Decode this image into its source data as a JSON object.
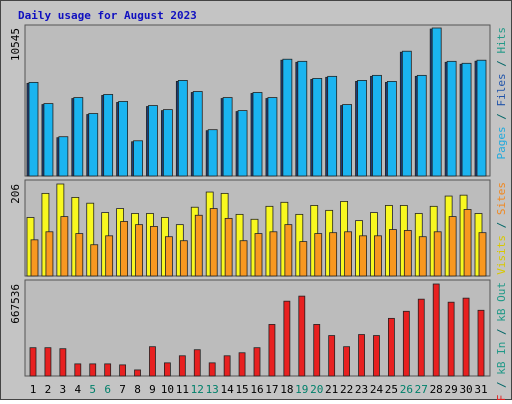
{
  "title": "Daily usage for August 2023",
  "categories": [
    "1",
    "2",
    "3",
    "4",
    "5",
    "6",
    "7",
    "8",
    "9",
    "10",
    "11",
    "12",
    "13",
    "14",
    "15",
    "16",
    "17",
    "18",
    "19",
    "20",
    "21",
    "22",
    "23",
    "24",
    "25",
    "26",
    "27",
    "28",
    "29",
    "30",
    "31"
  ],
  "category_colors": [
    "#000000",
    "#000000",
    "#000000",
    "#000000",
    "#00806a",
    "#00806a",
    "#000000",
    "#000000",
    "#000000",
    "#000000",
    "#000000",
    "#00806a",
    "#00806a",
    "#000000",
    "#000000",
    "#000000",
    "#000000",
    "#000000",
    "#00806a",
    "#00806a",
    "#000000",
    "#000000",
    "#000000",
    "#000000",
    "#000000",
    "#00806a",
    "#00806a",
    "#000000",
    "#000000",
    "#000000",
    "#000000"
  ],
  "chart_data": [
    {
      "type": "bar",
      "ylim": [
        0,
        10545
      ],
      "yticks": [
        10545
      ],
      "legend": [
        {
          "text": "Pages",
          "color": "#22aadd"
        },
        {
          "text": " / ",
          "color": "#006666"
        },
        {
          "text": "Files",
          "color": "#2255aa"
        },
        {
          "text": " / ",
          "color": "#006666"
        },
        {
          "text": "Hits",
          "color": "#229988"
        }
      ],
      "series": [
        {
          "name": "Files",
          "color": "#1a3c78",
          "values": [
            6600,
            5090,
            2730,
            5520,
            4380,
            5740,
            5240,
            2440,
            4950,
            4660,
            6740,
            5950,
            3230,
            5520,
            4590,
            5880,
            5520,
            8250,
            8100,
            6880,
            7030,
            5020,
            6740,
            7100,
            6670,
            8820,
            7100,
            10470,
            8100,
            7960,
            8180
          ]
        },
        {
          "name": "Hits",
          "color": "#1ab4f0",
          "values": [
            6670,
            5160,
            2800,
            5590,
            4450,
            5810,
            5310,
            2510,
            5020,
            4730,
            6810,
            6020,
            3300,
            5590,
            4660,
            5950,
            5590,
            8320,
            8170,
            6950,
            7100,
            5090,
            6810,
            7170,
            6740,
            8890,
            7170,
            10545,
            8170,
            8030,
            8250
          ]
        }
      ]
    },
    {
      "type": "bar",
      "ylim": [
        0,
        206
      ],
      "yticks": [
        206
      ],
      "legend": [
        {
          "text": "Visits",
          "color": "#d8c800"
        },
        {
          "text": " / ",
          "color": "#006666"
        },
        {
          "text": "Sites",
          "color": "#f08820"
        }
      ],
      "series": [
        {
          "name": "Visits",
          "color": "#f8f820",
          "values": [
            131,
            185,
            206,
            176,
            163,
            142,
            151,
            140,
            140,
            131,
            115,
            154,
            188,
            185,
            138,
            127,
            156,
            165,
            138,
            158,
            147,
            167,
            124,
            142,
            158,
            158,
            140,
            156,
            179,
            181,
            140
          ]
        },
        {
          "name": "Sites",
          "color": "#f89820",
          "values": [
            81,
            99,
            133,
            95,
            70,
            90,
            122,
            115,
            111,
            88,
            79,
            136,
            151,
            129,
            79,
            95,
            99,
            115,
            77,
            95,
            97,
            99,
            90,
            90,
            104,
            102,
            88,
            99,
            133,
            149,
            97
          ]
        }
      ]
    },
    {
      "type": "bar",
      "ylim": [
        0,
        667536
      ],
      "yticks": [
        667536
      ],
      "legend": [
        {
          "text": "kB F",
          "color": "#e02020"
        },
        {
          "text": " / ",
          "color": "#006666"
        },
        {
          "text": "kB In",
          "color": "#229988"
        },
        {
          "text": " / ",
          "color": "#006666"
        },
        {
          "text": "kB Out",
          "color": "#229988"
        }
      ],
      "series": [
        {
          "name": "kB F",
          "color": "#e82020",
          "values": [
            205400,
            205400,
            198100,
            88000,
            88000,
            88000,
            80700,
            44000,
            212700,
            95400,
            146700,
            190700,
            95400,
            146700,
            168700,
            205400,
            374100,
            542900,
            579500,
            374100,
            293400,
            212700,
            300800,
            293400,
            418200,
            469500,
            557500,
            667536,
            535500,
            564900,
            476800
          ]
        }
      ]
    }
  ]
}
